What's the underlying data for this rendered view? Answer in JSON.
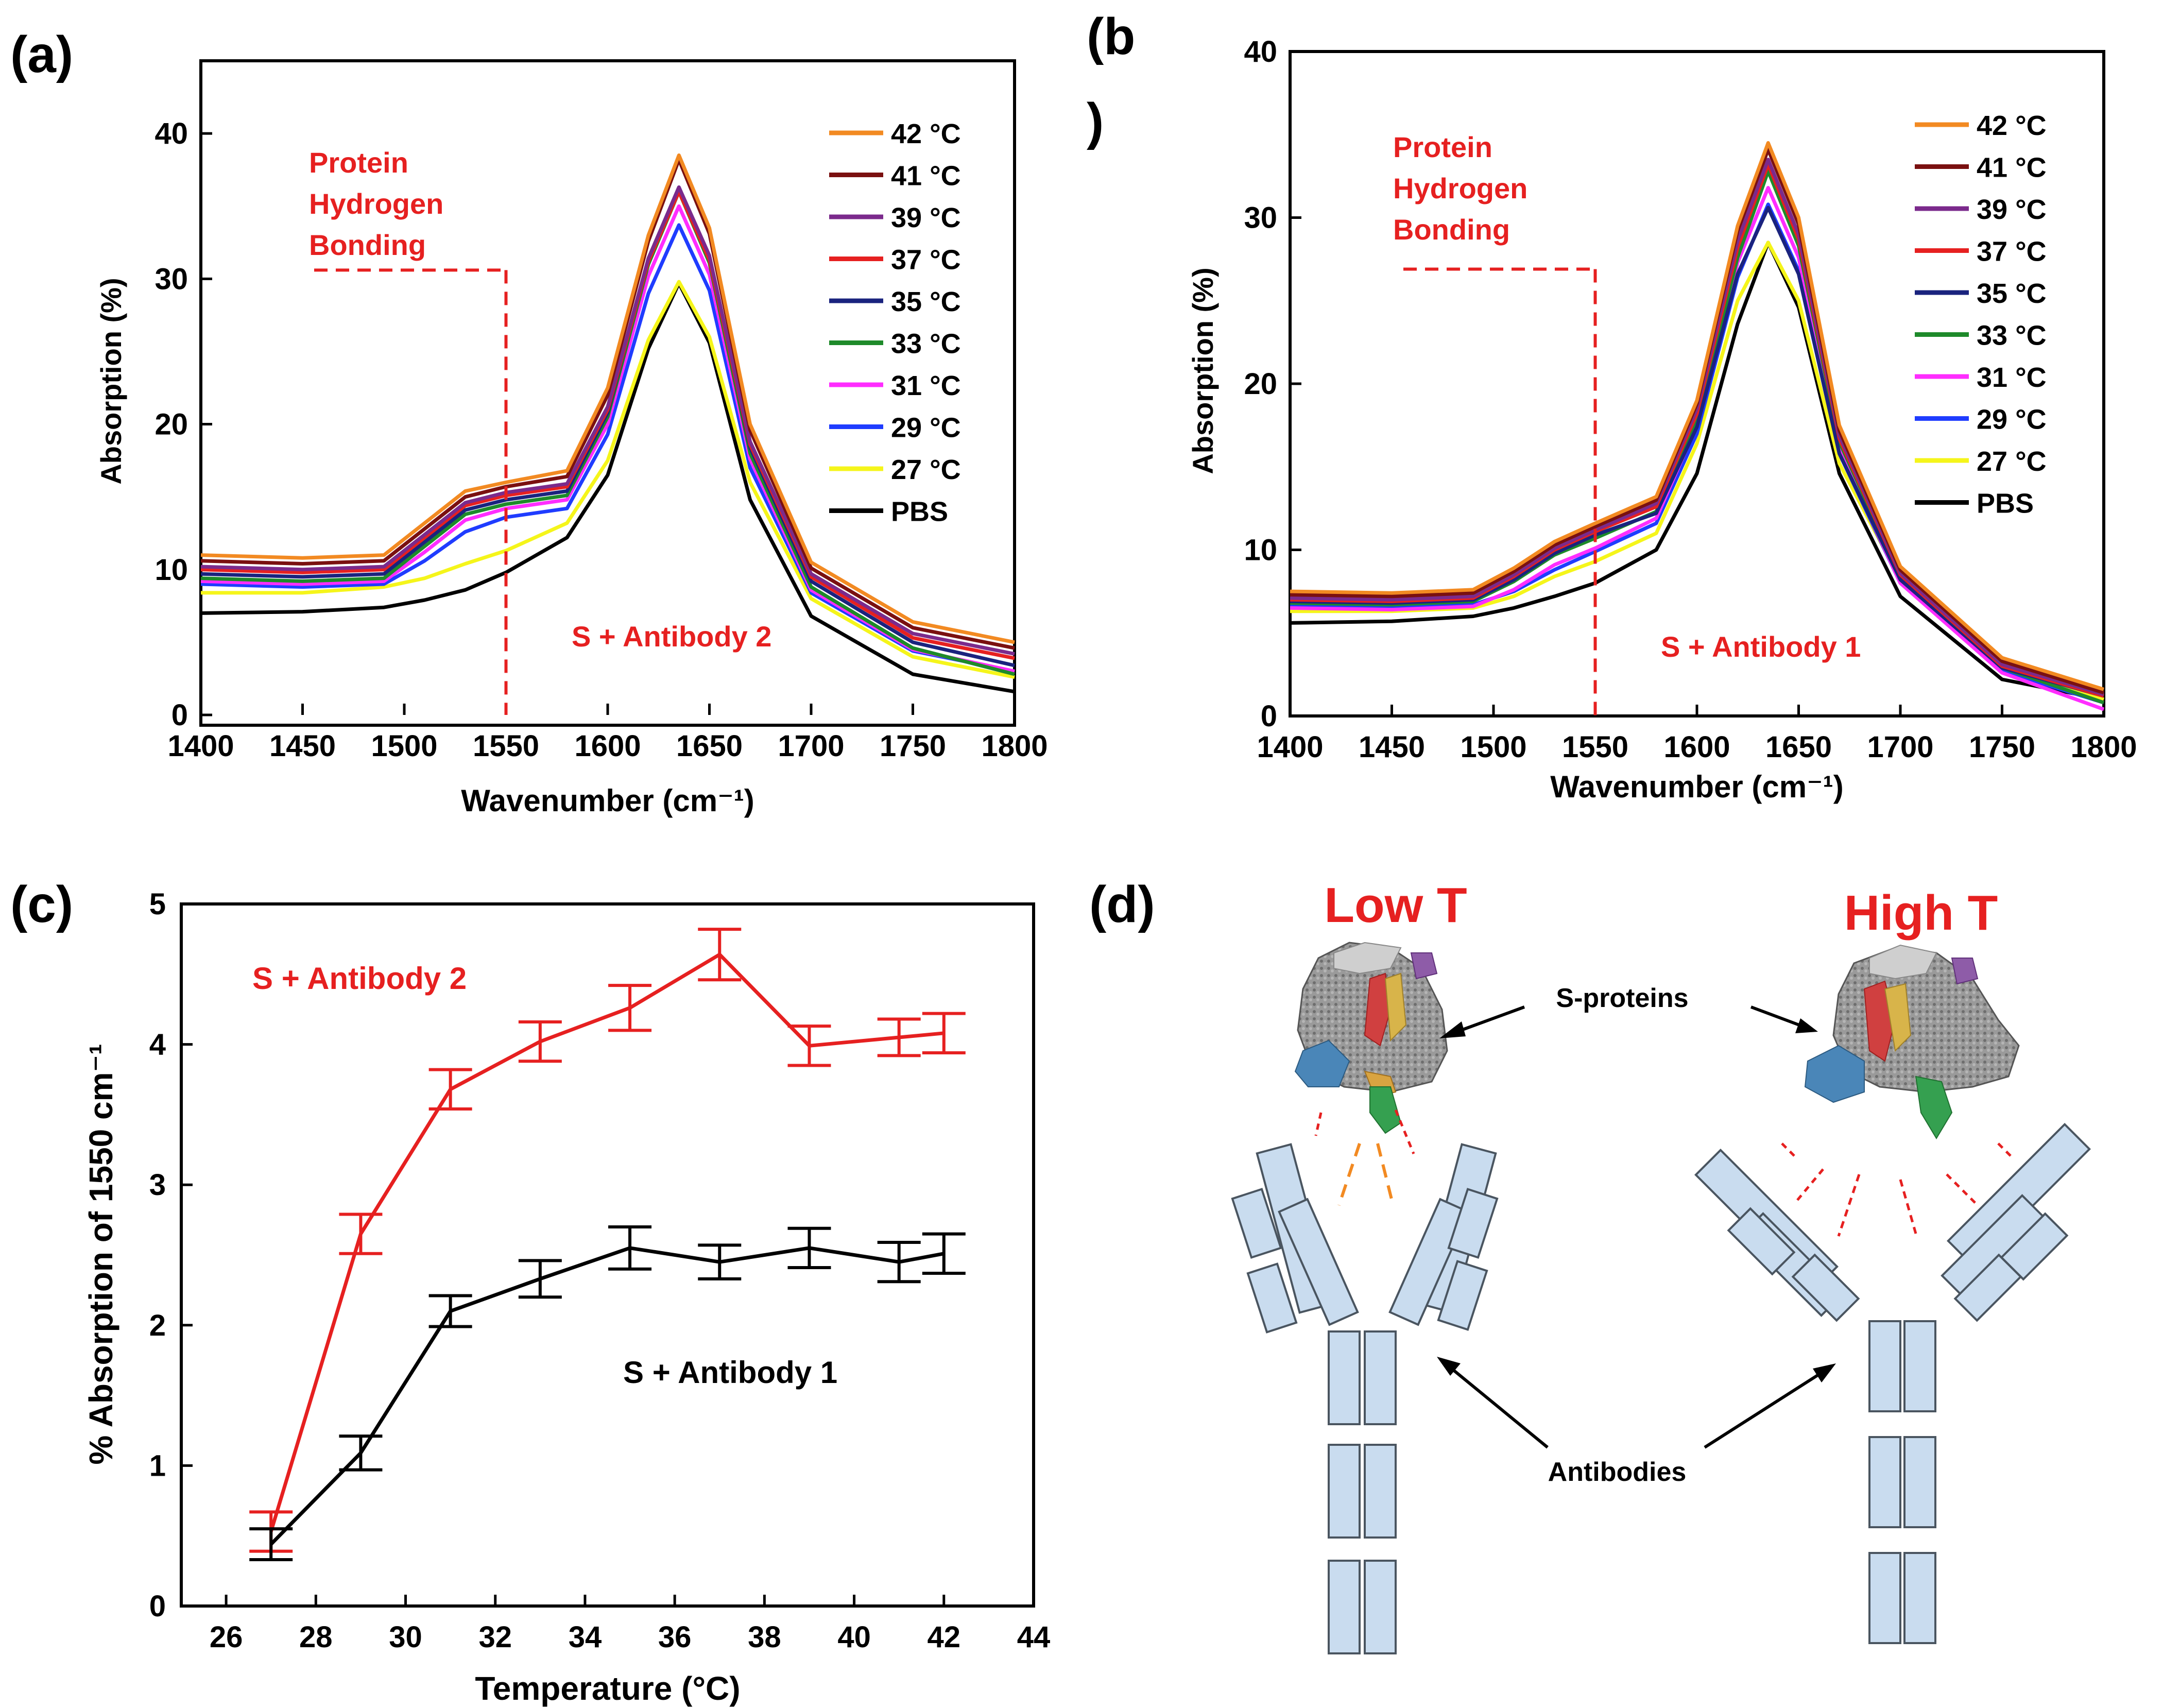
{
  "panels": {
    "a": {
      "letter": "(a)"
    },
    "b": {
      "letter1": "(b",
      "letter2": ")"
    },
    "c": {
      "letter": "(c)"
    },
    "d": {
      "letter": "(d)"
    }
  },
  "legend": [
    {
      "label": "42 °C",
      "color": "#f28a22"
    },
    {
      "label": "41 °C",
      "color": "#7a1010"
    },
    {
      "label": "39 °C",
      "color": "#7b2a8c"
    },
    {
      "label": "37 °C",
      "color": "#e62020"
    },
    {
      "label": "35 °C",
      "color": "#1a237e"
    },
    {
      "label": "33 °C",
      "color": "#1e8a2a"
    },
    {
      "label": "31 °C",
      "color": "#ff2dff"
    },
    {
      "label": "29 °C",
      "color": "#1f3cff"
    },
    {
      "label": "27 °C",
      "color": "#f5f51a"
    },
    {
      "label": "PBS",
      "color": "#000000"
    }
  ],
  "annotations": {
    "hbond_line1": "Protein",
    "hbond_line2": "Hydrogen",
    "hbond_line3": "Bonding"
  },
  "diagram": {
    "low_t": "Low T",
    "high_t": "High T",
    "s_proteins": "S-proteins",
    "antibodies": "Antibodies"
  },
  "colors": {
    "red": "#e62020",
    "black": "#000000",
    "orange": "#f28a22",
    "antibody_fill": "#c9dcef",
    "antibody_stroke": "#4a5560"
  },
  "chart_data": [
    {
      "id": "a",
      "type": "line",
      "title": "",
      "annotation": "S + Antibody 2",
      "xlabel": "Wavenumber (cm⁻¹)",
      "ylabel": "Absorption (%)",
      "xlim": [
        1400,
        1800
      ],
      "ylim": [
        0,
        45
      ],
      "xticks": [
        1400,
        1450,
        1500,
        1550,
        1600,
        1650,
        1700,
        1750,
        1800
      ],
      "yticks": [
        0,
        10,
        20,
        30,
        40
      ],
      "marker_x": 1550,
      "marker_y": 30.6,
      "x": [
        1400,
        1450,
        1490,
        1510,
        1530,
        1550,
        1580,
        1600,
        1620,
        1635,
        1650,
        1670,
        1700,
        1750,
        1800
      ],
      "series": [
        {
          "name": "42 °C",
          "values": [
            11.0,
            10.8,
            11.0,
            13.2,
            15.4,
            16.0,
            16.8,
            22.5,
            33.0,
            38.5,
            33.5,
            20.0,
            10.5,
            6.4,
            5.0
          ]
        },
        {
          "name": "41 °C",
          "values": [
            10.6,
            10.4,
            10.6,
            12.8,
            15.0,
            15.7,
            16.4,
            22.0,
            32.6,
            38.2,
            33.1,
            19.6,
            10.1,
            6.0,
            4.6
          ]
        },
        {
          "name": "39 °C",
          "values": [
            10.2,
            10.0,
            10.2,
            12.4,
            14.6,
            15.3,
            15.9,
            21.2,
            31.4,
            36.3,
            31.6,
            18.8,
            9.7,
            5.6,
            4.2
          ]
        },
        {
          "name": "37 °C",
          "values": [
            10.0,
            9.8,
            10.0,
            12.2,
            14.4,
            15.1,
            15.7,
            21.0,
            31.2,
            36.0,
            31.3,
            18.6,
            9.5,
            5.3,
            3.9
          ]
        },
        {
          "name": "35 °C",
          "values": [
            9.7,
            9.5,
            9.7,
            11.9,
            14.1,
            14.8,
            15.4,
            20.8,
            31.4,
            36.3,
            31.5,
            18.4,
            9.2,
            5.0,
            3.4
          ]
        },
        {
          "name": "33 °C",
          "values": [
            9.4,
            9.2,
            9.4,
            11.6,
            13.8,
            14.5,
            15.1,
            20.5,
            31.0,
            36.0,
            31.1,
            18.0,
            8.8,
            4.6,
            2.8
          ]
        },
        {
          "name": "31 °C",
          "values": [
            9.2,
            9.0,
            9.2,
            11.2,
            13.4,
            14.2,
            14.8,
            20.0,
            30.2,
            35.0,
            30.3,
            17.6,
            8.6,
            4.5,
            3.0
          ]
        },
        {
          "name": "29 °C",
          "values": [
            9.0,
            8.8,
            9.0,
            10.6,
            12.6,
            13.6,
            14.2,
            19.3,
            29.0,
            33.7,
            29.2,
            17.0,
            8.4,
            4.4,
            3.0
          ]
        },
        {
          "name": "27 °C",
          "values": [
            8.4,
            8.4,
            8.8,
            9.4,
            10.4,
            11.3,
            13.2,
            17.5,
            25.8,
            29.8,
            26.0,
            16.0,
            8.0,
            4.0,
            2.6
          ]
        },
        {
          "name": "PBS",
          "values": [
            7.0,
            7.1,
            7.4,
            7.9,
            8.6,
            9.8,
            12.2,
            16.5,
            25.2,
            29.7,
            25.6,
            14.8,
            6.8,
            2.8,
            1.6
          ]
        }
      ]
    },
    {
      "id": "b",
      "type": "line",
      "title": "",
      "annotation": "S + Antibody 1",
      "xlabel": "Wavenumber (cm⁻¹)",
      "ylabel": "Absorption (%)",
      "xlim": [
        1400,
        1800
      ],
      "ylim": [
        0,
        40
      ],
      "xticks": [
        1400,
        1450,
        1500,
        1550,
        1600,
        1650,
        1700,
        1750,
        1800
      ],
      "yticks": [
        0,
        10,
        20,
        30,
        40
      ],
      "marker_x": 1550,
      "marker_y": 26.9,
      "x": [
        1400,
        1450,
        1490,
        1510,
        1530,
        1550,
        1580,
        1600,
        1620,
        1635,
        1650,
        1670,
        1700,
        1750,
        1800
      ],
      "series": [
        {
          "name": "42 °C",
          "values": [
            7.5,
            7.4,
            7.6,
            8.9,
            10.5,
            11.6,
            13.2,
            19.0,
            29.5,
            34.5,
            30.0,
            17.5,
            9.0,
            3.5,
            1.6
          ]
        },
        {
          "name": "41 °C",
          "values": [
            7.3,
            7.2,
            7.4,
            8.7,
            10.3,
            11.4,
            13.0,
            18.8,
            29.2,
            34.1,
            29.6,
            17.2,
            8.8,
            3.3,
            1.4
          ]
        },
        {
          "name": "39 °C",
          "values": [
            7.1,
            7.0,
            7.2,
            8.5,
            10.1,
            11.2,
            12.8,
            18.5,
            28.6,
            33.5,
            29.0,
            16.9,
            8.6,
            3.1,
            1.3
          ]
        },
        {
          "name": "37 °C",
          "values": [
            7.0,
            6.9,
            7.1,
            8.4,
            10.0,
            11.1,
            12.6,
            18.2,
            28.2,
            33.2,
            28.7,
            16.7,
            8.5,
            3.0,
            1.2
          ]
        },
        {
          "name": "35 °C",
          "values": [
            6.9,
            6.8,
            7.0,
            8.2,
            9.8,
            10.9,
            12.2,
            17.4,
            26.6,
            30.6,
            26.6,
            15.8,
            8.2,
            2.9,
            1.2
          ]
        },
        {
          "name": "33 °C",
          "values": [
            6.8,
            6.7,
            6.9,
            8.1,
            9.7,
            10.7,
            12.3,
            17.8,
            27.6,
            32.8,
            28.3,
            16.5,
            8.4,
            2.9,
            0.8
          ]
        },
        {
          "name": "31 °C",
          "values": [
            6.5,
            6.4,
            6.6,
            7.6,
            9.1,
            10.1,
            11.9,
            17.5,
            27.3,
            31.8,
            27.6,
            16.0,
            8.0,
            2.6,
            0.4
          ]
        },
        {
          "name": "29 °C",
          "values": [
            6.6,
            6.5,
            6.7,
            7.5,
            8.8,
            9.9,
            11.6,
            17.0,
            26.4,
            30.8,
            26.8,
            15.8,
            8.0,
            2.7,
            0.8
          ]
        },
        {
          "name": "27 °C",
          "values": [
            6.3,
            6.3,
            6.5,
            7.2,
            8.4,
            9.3,
            11.0,
            16.4,
            25.0,
            28.5,
            25.0,
            15.2,
            8.2,
            3.0,
            1.0
          ]
        },
        {
          "name": "PBS",
          "values": [
            5.6,
            5.7,
            6.0,
            6.5,
            7.2,
            8.0,
            10.0,
            14.6,
            23.6,
            28.5,
            24.6,
            14.6,
            7.2,
            2.2,
            1.0
          ]
        }
      ]
    },
    {
      "id": "c",
      "type": "line",
      "title": "",
      "xlabel": "Temperature (°C)",
      "ylabel": "% Absorption of 1550 cm⁻¹",
      "xlim": [
        25,
        44
      ],
      "ylim": [
        0,
        5
      ],
      "xticks": [
        26,
        28,
        30,
        32,
        34,
        36,
        38,
        40,
        42,
        44
      ],
      "yticks": [
        0,
        1,
        2,
        3,
        4,
        5
      ],
      "x": [
        27,
        29,
        31,
        33,
        35,
        37,
        39,
        41,
        42
      ],
      "series": [
        {
          "name": "S + Antibody 2",
          "color": "#e62020",
          "values": [
            0.53,
            2.65,
            3.68,
            4.02,
            4.26,
            4.64,
            3.99,
            4.05,
            4.08
          ],
          "errors": [
            0.14,
            0.14,
            0.14,
            0.14,
            0.16,
            0.18,
            0.14,
            0.13,
            0.14
          ]
        },
        {
          "name": "S + Antibody 1",
          "color": "#000000",
          "values": [
            0.44,
            1.09,
            2.1,
            2.33,
            2.55,
            2.45,
            2.55,
            2.45,
            2.51
          ],
          "errors": [
            0.11,
            0.12,
            0.11,
            0.13,
            0.15,
            0.12,
            0.14,
            0.14,
            0.14
          ]
        }
      ]
    }
  ]
}
